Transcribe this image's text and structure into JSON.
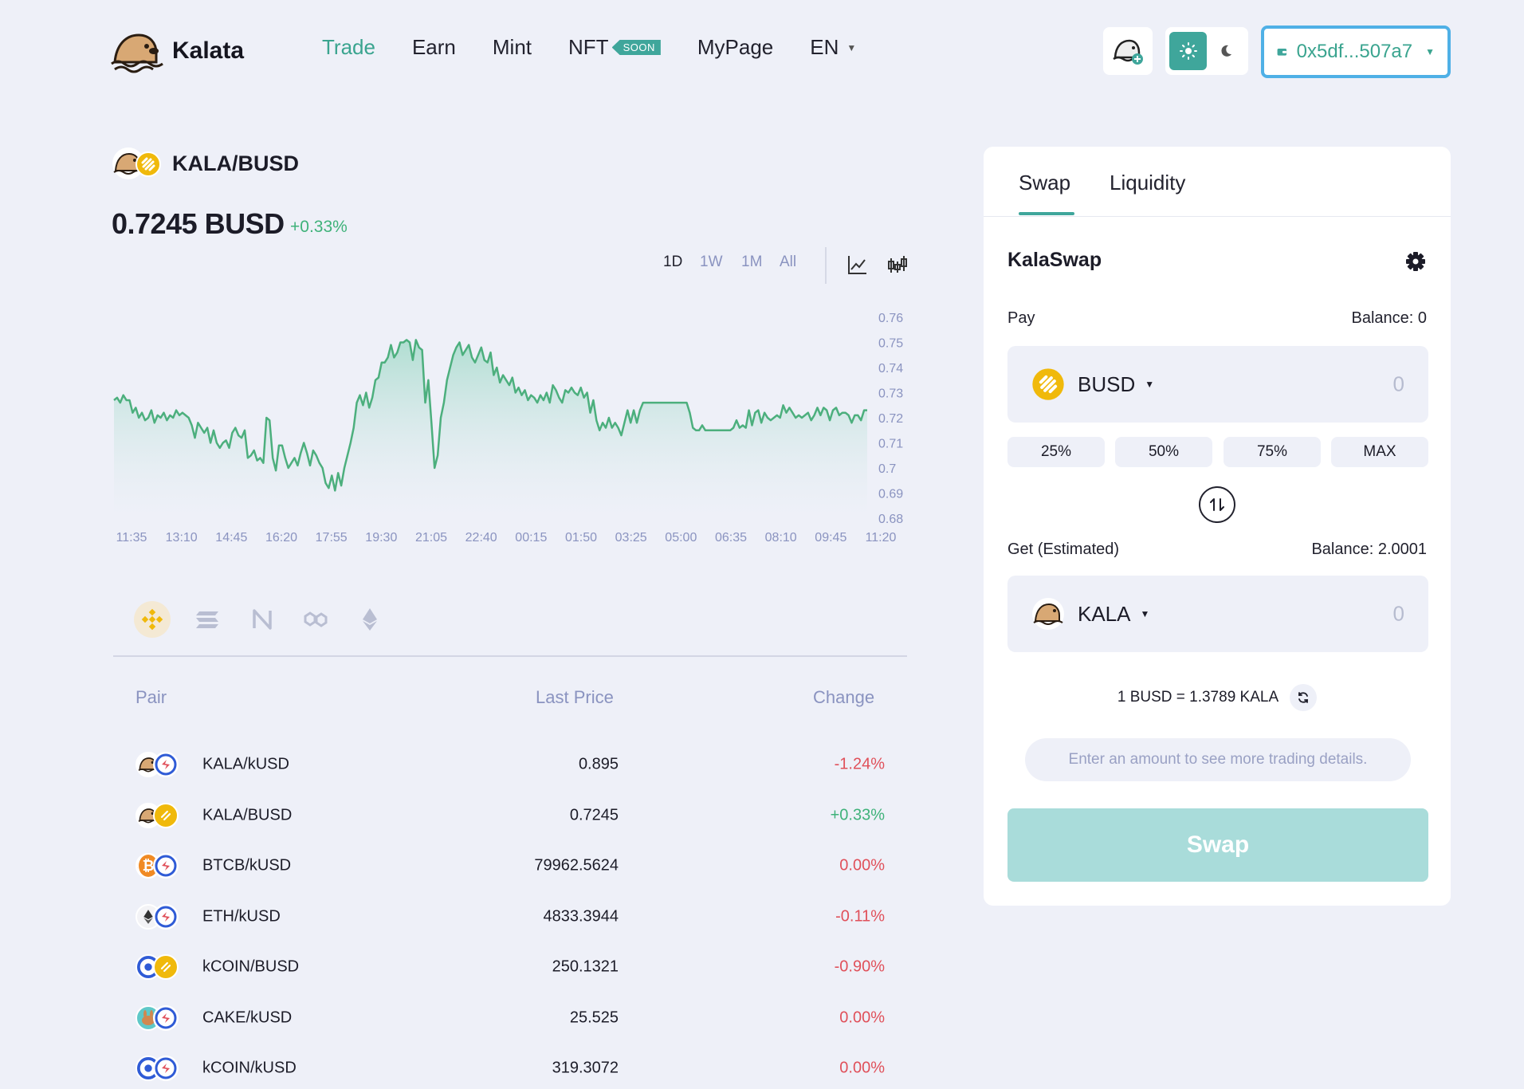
{
  "header": {
    "brand": "Kalata",
    "nav": [
      {
        "label": "Trade",
        "active": true
      },
      {
        "label": "Earn"
      },
      {
        "label": "Mint"
      },
      {
        "label": "NFT",
        "badge": "SOON"
      },
      {
        "label": "MyPage"
      }
    ],
    "language": "EN",
    "wallet_address": "0x5df...507a7",
    "icons": [
      "kalata-logo-icon",
      "add-kala-token-icon",
      "sun-icon",
      "moon-icon",
      "wallet-icon"
    ]
  },
  "pair": {
    "name": "KALA/BUSD",
    "price": "0.7245 BUSD",
    "change": "+0.33%"
  },
  "timeframes": [
    {
      "label": "1D",
      "active": true
    },
    {
      "label": "1W"
    },
    {
      "label": "1M"
    },
    {
      "label": "All"
    }
  ],
  "chart_data": {
    "type": "area",
    "x_ticks": [
      "11:35",
      "13:10",
      "14:45",
      "16:20",
      "17:55",
      "19:30",
      "21:05",
      "22:40",
      "00:15",
      "01:50",
      "03:25",
      "05:00",
      "06:35",
      "08:10",
      "09:45",
      "11:20"
    ],
    "y_ticks": [
      "0.76",
      "0.75",
      "0.74",
      "0.73",
      "0.72",
      "0.71",
      "0.7",
      "0.69",
      "0.68"
    ],
    "ylim": [
      0.68,
      0.76
    ],
    "color": "#4caf7d",
    "values": [
      0.727,
      0.728,
      0.726,
      0.729,
      0.727,
      0.727,
      0.722,
      0.724,
      0.72,
      0.722,
      0.719,
      0.72,
      0.723,
      0.718,
      0.721,
      0.72,
      0.722,
      0.719,
      0.721,
      0.72,
      0.723,
      0.721,
      0.722,
      0.721,
      0.72,
      0.717,
      0.712,
      0.718,
      0.716,
      0.714,
      0.716,
      0.71,
      0.715,
      0.71,
      0.708,
      0.71,
      0.711,
      0.708,
      0.714,
      0.716,
      0.713,
      0.712,
      0.715,
      0.704,
      0.705,
      0.707,
      0.703,
      0.704,
      0.702,
      0.72,
      0.719,
      0.704,
      0.699,
      0.709,
      0.709,
      0.704,
      0.7,
      0.702,
      0.704,
      0.701,
      0.706,
      0.71,
      0.706,
      0.701,
      0.707,
      0.705,
      0.702,
      0.7,
      0.694,
      0.692,
      0.697,
      0.691,
      0.698,
      0.693,
      0.7,
      0.705,
      0.71,
      0.716,
      0.726,
      0.729,
      0.725,
      0.73,
      0.724,
      0.728,
      0.735,
      0.736,
      0.742,
      0.742,
      0.744,
      0.749,
      0.744,
      0.746,
      0.75,
      0.75,
      0.751,
      0.75,
      0.743,
      0.751,
      0.748,
      0.747,
      0.726,
      0.735,
      0.718,
      0.7,
      0.705,
      0.72,
      0.726,
      0.735,
      0.74,
      0.745,
      0.748,
      0.75,
      0.745,
      0.747,
      0.749,
      0.744,
      0.742,
      0.745,
      0.748,
      0.743,
      0.742,
      0.746,
      0.737,
      0.74,
      0.734,
      0.737,
      0.735,
      0.733,
      0.736,
      0.73,
      0.732,
      0.729,
      0.731,
      0.727,
      0.729,
      0.728,
      0.726,
      0.729,
      0.727,
      0.73,
      0.726,
      0.733,
      0.731,
      0.728,
      0.726,
      0.731,
      0.73,
      0.732,
      0.73,
      0.729,
      0.732,
      0.728,
      0.73,
      0.722,
      0.727,
      0.719,
      0.715,
      0.718,
      0.716,
      0.72,
      0.716,
      0.718,
      0.716,
      0.713,
      0.718,
      0.723,
      0.718,
      0.723,
      0.718,
      0.723,
      0.726,
      0.726,
      0.726,
      0.726,
      0.726,
      0.726,
      0.726,
      0.726,
      0.726,
      0.726,
      0.726,
      0.726,
      0.726,
      0.726,
      0.726,
      0.722,
      0.716,
      0.715,
      0.715,
      0.717,
      0.715,
      0.715,
      0.715,
      0.715,
      0.715,
      0.715,
      0.715,
      0.715,
      0.715,
      0.716,
      0.719,
      0.716,
      0.717,
      0.716,
      0.723,
      0.717,
      0.722,
      0.723,
      0.718,
      0.722,
      0.72,
      0.719,
      0.72,
      0.721,
      0.72,
      0.725,
      0.722,
      0.724,
      0.722,
      0.72,
      0.721,
      0.72,
      0.721,
      0.722,
      0.719,
      0.721,
      0.724,
      0.721,
      0.724,
      0.723,
      0.719,
      0.723,
      0.724,
      0.721,
      0.722,
      0.722,
      0.721,
      0.718,
      0.721,
      0.721,
      0.719,
      0.723,
      0.723
    ]
  },
  "chains": [
    {
      "name": "bnb-chain-icon",
      "active": true
    },
    {
      "name": "solana-chain-icon"
    },
    {
      "name": "near-chain-icon"
    },
    {
      "name": "polygon-chain-icon"
    },
    {
      "name": "ethereum-chain-icon"
    }
  ],
  "market": {
    "headers": {
      "pair": "Pair",
      "price": "Last Price",
      "change": "Change"
    },
    "rows": [
      {
        "pair": "KALA/kUSD",
        "price": "0.895",
        "change": "-1.24%",
        "dir": "neg",
        "icons": [
          "kala-token-icon",
          "kusd-token-icon"
        ]
      },
      {
        "pair": "KALA/BUSD",
        "price": "0.7245",
        "change": "+0.33%",
        "dir": "pos",
        "icons": [
          "kala-token-icon",
          "busd-token-icon"
        ]
      },
      {
        "pair": "BTCB/kUSD",
        "price": "79962.5624",
        "change": "0.00%",
        "dir": "neg",
        "icons": [
          "btcb-token-icon",
          "kusd-token-icon"
        ]
      },
      {
        "pair": "ETH/kUSD",
        "price": "4833.3944",
        "change": "-0.11%",
        "dir": "neg",
        "icons": [
          "eth-token-icon",
          "kusd-token-icon"
        ]
      },
      {
        "pair": "kCOIN/BUSD",
        "price": "250.1321",
        "change": "-0.90%",
        "dir": "neg",
        "icons": [
          "kcoin-token-icon",
          "busd-token-icon"
        ]
      },
      {
        "pair": "CAKE/kUSD",
        "price": "25.525",
        "change": "0.00%",
        "dir": "neg",
        "icons": [
          "cake-token-icon",
          "kusd-token-icon"
        ]
      },
      {
        "pair": "kCOIN/kUSD",
        "price": "319.3072",
        "change": "0.00%",
        "dir": "neg",
        "icons": [
          "kcoin-token-icon",
          "kusd-token-icon"
        ]
      }
    ]
  },
  "swap": {
    "tabs": [
      {
        "label": "Swap",
        "active": true
      },
      {
        "label": "Liquidity"
      }
    ],
    "title": "KalaSwap",
    "pay_label": "Pay",
    "pay_balance": "Balance: 0",
    "pay_token": "BUSD",
    "pay_amount_placeholder": "0",
    "percent_buttons": [
      "25%",
      "50%",
      "75%",
      "MAX"
    ],
    "get_label": "Get (Estimated)",
    "get_balance": "Balance: 2.0001",
    "get_token": "KALA",
    "get_amount_placeholder": "0",
    "rate": "1 BUSD = 1.3789 KALA",
    "details_hint": "Enter an amount to see more trading details.",
    "swap_button": "Swap"
  },
  "colors": {
    "accent": "#3fa69b",
    "positive": "#3fb27a",
    "negative": "#e0505a",
    "busd": "#f0b90b",
    "wallet_border": "#4fb0e6"
  }
}
